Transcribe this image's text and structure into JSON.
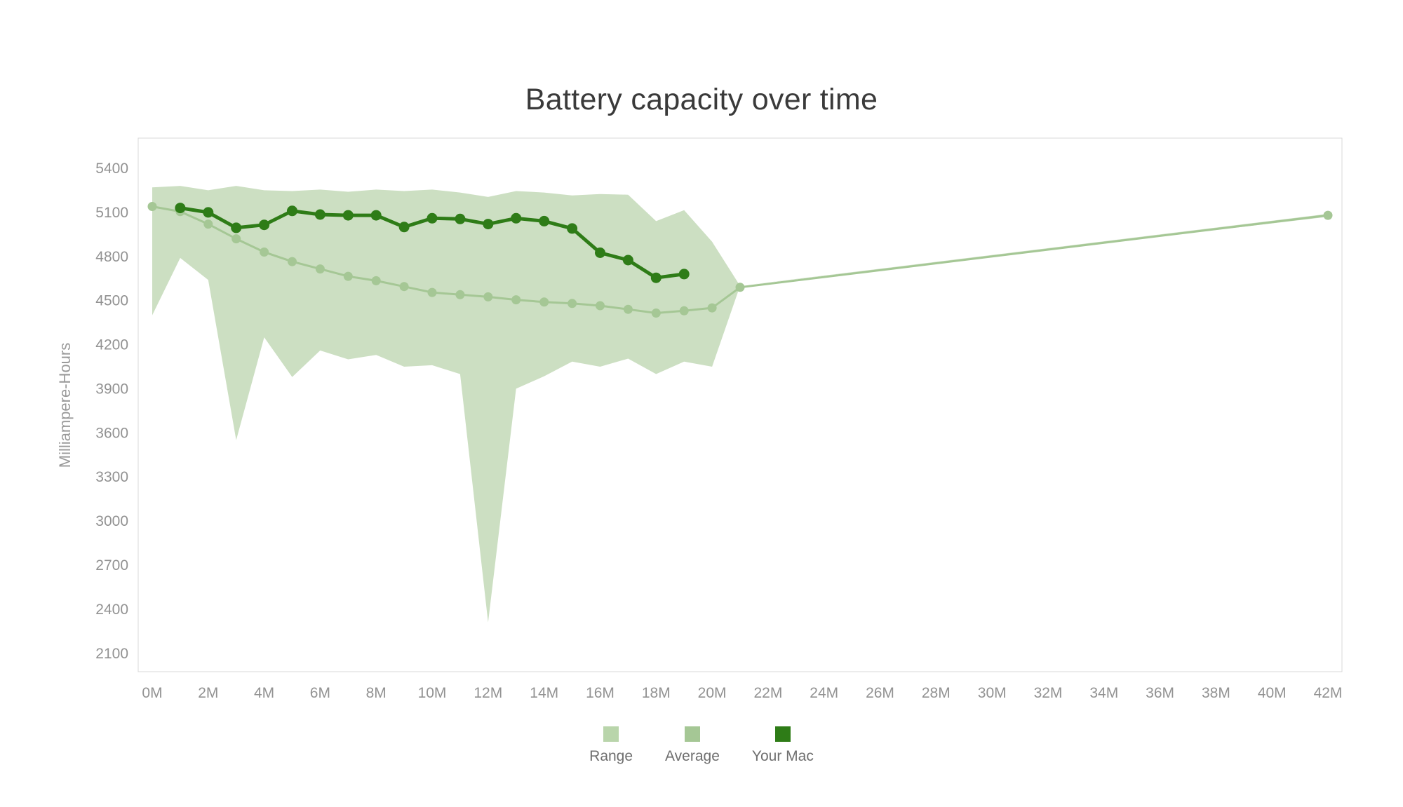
{
  "page": {
    "background": "#ffffff"
  },
  "chart_data": {
    "type": "area",
    "title": "Battery capacity over time",
    "ylabel": "Milliampere-Hours",
    "xlabel": "",
    "xlim": [
      -0.5,
      42.5
    ],
    "ylim": [
      1975,
      5605
    ],
    "grid": false,
    "legend_position": "bottom-center",
    "x_ticks": [
      {
        "value": 0,
        "label": "0M"
      },
      {
        "value": 2,
        "label": "2M"
      },
      {
        "value": 4,
        "label": "4M"
      },
      {
        "value": 6,
        "label": "6M"
      },
      {
        "value": 8,
        "label": "8M"
      },
      {
        "value": 10,
        "label": "10M"
      },
      {
        "value": 12,
        "label": "12M"
      },
      {
        "value": 14,
        "label": "14M"
      },
      {
        "value": 16,
        "label": "16M"
      },
      {
        "value": 18,
        "label": "18M"
      },
      {
        "value": 20,
        "label": "20M"
      },
      {
        "value": 22,
        "label": "22M"
      },
      {
        "value": 24,
        "label": "24M"
      },
      {
        "value": 26,
        "label": "26M"
      },
      {
        "value": 28,
        "label": "28M"
      },
      {
        "value": 30,
        "label": "30M"
      },
      {
        "value": 32,
        "label": "32M"
      },
      {
        "value": 34,
        "label": "34M"
      },
      {
        "value": 36,
        "label": "36M"
      },
      {
        "value": 38,
        "label": "38M"
      },
      {
        "value": 40,
        "label": "40M"
      },
      {
        "value": 42,
        "label": "42M"
      }
    ],
    "y_ticks": [
      5400,
      5100,
      4800,
      4500,
      4200,
      3900,
      3600,
      3300,
      3000,
      2700,
      2400,
      2100
    ],
    "colors": {
      "plot_border": "#d9d9d9",
      "tick_label": "#929292",
      "axis_title": "#9a9a9a",
      "legend_label": "#6f6f6f",
      "range_fill": "#ccdfc2",
      "average_line": "#a5c795",
      "your_mac_line": "#2e7c17"
    },
    "series": [
      {
        "name": "Range",
        "kind": "band",
        "color": "#ccdfc2",
        "x": [
          0,
          1,
          2,
          3,
          4,
          5,
          6,
          7,
          8,
          9,
          10,
          11,
          12,
          13,
          14,
          15,
          16,
          17,
          18,
          19,
          20,
          21,
          42
        ],
        "upper": [
          5270,
          5280,
          5250,
          5280,
          5250,
          5245,
          5255,
          5240,
          5255,
          5245,
          5255,
          5235,
          5205,
          5245,
          5235,
          5215,
          5225,
          5220,
          5040,
          5115,
          4900,
          4600,
          5090
        ],
        "lower": [
          4400,
          4790,
          4640,
          3550,
          4250,
          3980,
          4160,
          4100,
          4130,
          4050,
          4060,
          4000,
          2310,
          3900,
          3985,
          4085,
          4050,
          4105,
          4000,
          4085,
          4050,
          4600,
          5070
        ]
      },
      {
        "name": "Average",
        "kind": "line",
        "color": "#a5c795",
        "line_width": 3,
        "marker_radius": 6.5,
        "x": [
          0,
          1,
          2,
          3,
          4,
          5,
          6,
          7,
          8,
          9,
          10,
          11,
          12,
          13,
          14,
          15,
          16,
          17,
          18,
          19,
          20,
          21,
          42
        ],
        "values": [
          5140,
          5105,
          5020,
          4920,
          4830,
          4765,
          4715,
          4665,
          4635,
          4595,
          4555,
          4540,
          4525,
          4505,
          4490,
          4480,
          4465,
          4440,
          4415,
          4430,
          4450,
          4590,
          5080
        ]
      },
      {
        "name": "Your Mac",
        "kind": "line",
        "color": "#2e7c17",
        "line_width": 5,
        "marker_radius": 7.5,
        "x": [
          1,
          2,
          3,
          4,
          5,
          6,
          7,
          8,
          9,
          10,
          11,
          12,
          13,
          14,
          15,
          16,
          17,
          18,
          19
        ],
        "values": [
          5130,
          5100,
          4995,
          5015,
          5110,
          5085,
          5080,
          5080,
          5000,
          5060,
          5055,
          5020,
          5060,
          5040,
          4990,
          4825,
          4775,
          4655,
          4680
        ]
      }
    ],
    "legend": [
      {
        "label": "Range",
        "color": "#b9d5ab"
      },
      {
        "label": "Average",
        "color": "#a5c795"
      },
      {
        "label": "Your Mac",
        "color": "#2e7c17"
      }
    ]
  }
}
